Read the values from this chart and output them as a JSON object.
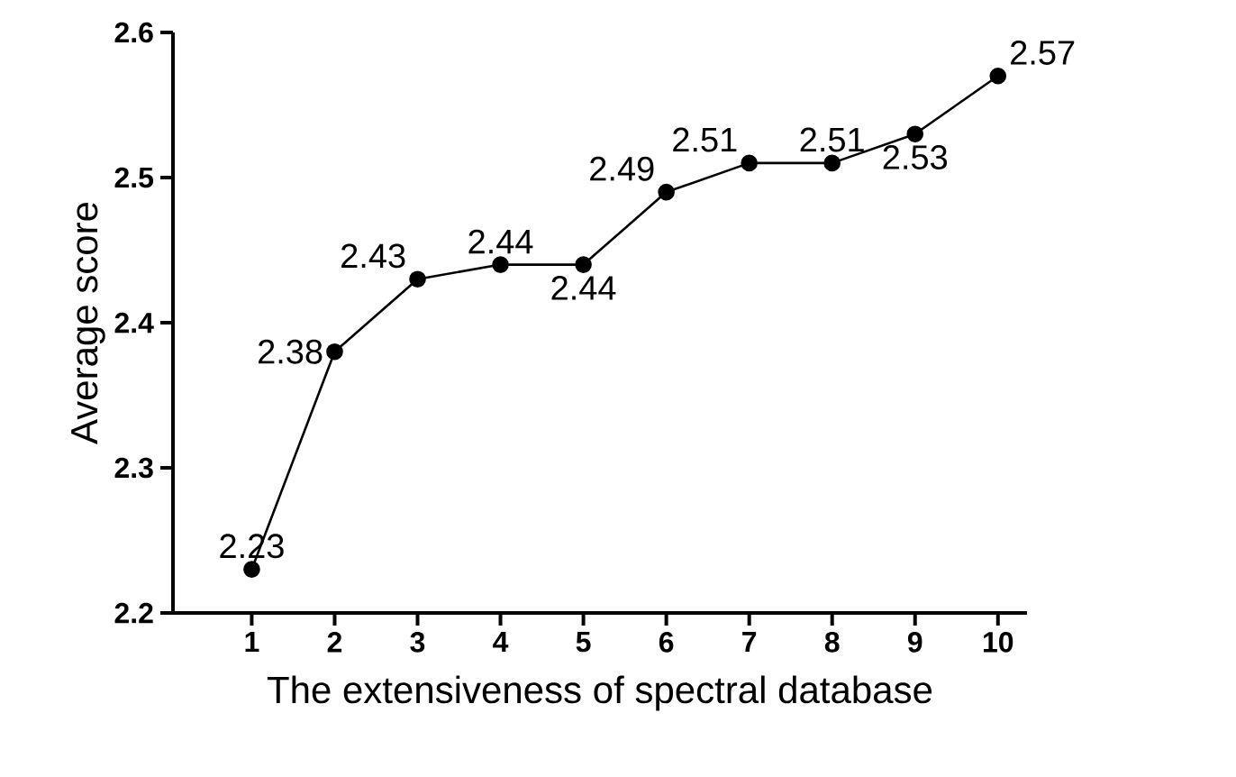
{
  "chart_data": {
    "type": "line",
    "xlabel": "The extensiveness of spectral database",
    "ylabel": "Average score",
    "x": [
      1,
      2,
      3,
      4,
      5,
      6,
      7,
      8,
      9,
      10
    ],
    "values": [
      2.23,
      2.38,
      2.43,
      2.44,
      2.44,
      2.49,
      2.51,
      2.51,
      2.53,
      2.57
    ],
    "color": "#000000",
    "marker": "circle",
    "line_style": "solid",
    "data_labels": true,
    "grid": false,
    "xlim": [
      0.05,
      10.35
    ],
    "xticks": [
      1,
      2,
      3,
      4,
      5,
      6,
      7,
      8,
      9,
      10
    ],
    "ylim": [
      2.2,
      2.6
    ],
    "yticks": [
      2.2,
      2.3,
      2.4,
      2.5,
      2.6
    ]
  }
}
